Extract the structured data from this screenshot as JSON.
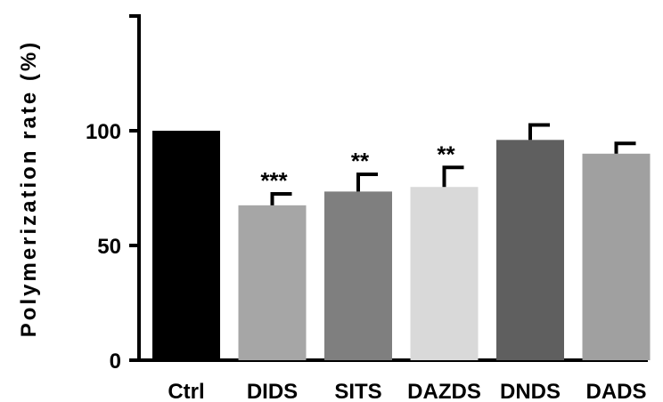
{
  "chart_data": {
    "type": "bar",
    "title": "",
    "xlabel": "",
    "ylabel": "Polymerization rate (%)",
    "ylim": [
      0,
      150
    ],
    "yticks": [
      0,
      50,
      100
    ],
    "categories": [
      "Ctrl",
      "DIDS",
      "SITS",
      "DAZDS",
      "DNDS",
      "DADS"
    ],
    "values": [
      100,
      67.5,
      73.5,
      75.5,
      96,
      90
    ],
    "errors": [
      0,
      5,
      7.5,
      8.5,
      6.5,
      4.5
    ],
    "significance": [
      "",
      "***",
      "**",
      "**",
      "",
      ""
    ],
    "colors": [
      "#000000",
      "#a6a6a6",
      "#7f7f7f",
      "#d9d9d9",
      "#5f5f5f",
      "#a0a0a0"
    ],
    "tick_labels": [
      "0",
      "50",
      "100"
    ]
  }
}
